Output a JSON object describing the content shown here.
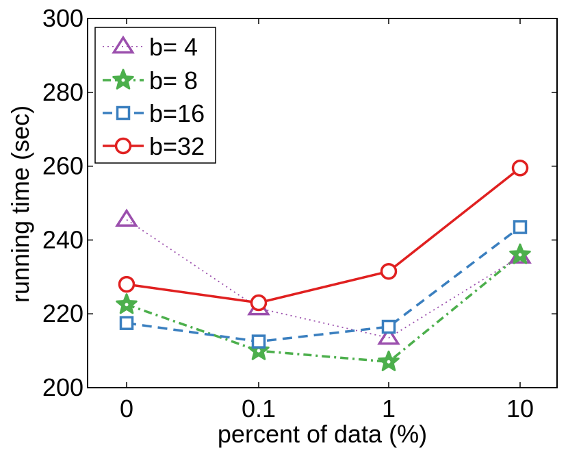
{
  "chart_data": {
    "type": "line",
    "title": "",
    "xlabel": "percent of data (%)",
    "ylabel": "running time (sec)",
    "categories": [
      "0",
      "0.1",
      "1",
      "10"
    ],
    "ylim": [
      200,
      300
    ],
    "yticks": [
      200,
      220,
      240,
      260,
      280,
      300
    ],
    "grid": false,
    "legend_position": "top-left",
    "series": [
      {
        "name": "b= 4",
        "values": [
          245.5,
          221.5,
          213.5,
          235.5
        ],
        "color": "#9b4fad",
        "marker": "triangle",
        "line": "dotted"
      },
      {
        "name": "b= 8",
        "values": [
          222.5,
          210.0,
          207.0,
          236.0
        ],
        "color": "#4caf4c",
        "marker": "star",
        "line": "dashdot"
      },
      {
        "name": "b=16",
        "values": [
          217.5,
          212.5,
          216.5,
          243.5
        ],
        "color": "#3a7fbf",
        "marker": "square",
        "line": "dashed"
      },
      {
        "name": "b=32",
        "values": [
          228.0,
          223.0,
          231.5,
          259.5
        ],
        "color": "#e02020",
        "marker": "circle",
        "line": "solid"
      }
    ]
  }
}
